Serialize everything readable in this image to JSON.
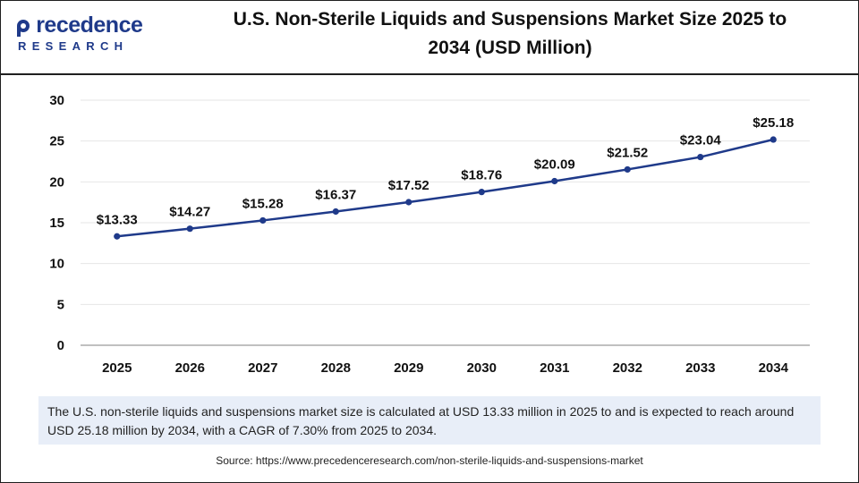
{
  "brand": {
    "name_prefix": "P",
    "name_rest": "recedence",
    "subtitle": "RESEARCH",
    "color": "#1f3a8a"
  },
  "title_line1": "U.S. Non-Sterile Liquids and Suspensions Market Size 2025 to",
  "title_line2": "2034 (USD Million)",
  "chart_data": {
    "type": "line",
    "title": "U.S. Non-Sterile Liquids and Suspensions Market Size 2025 to 2034 (USD Million)",
    "xlabel": "",
    "ylabel": "",
    "categories": [
      "2025",
      "2026",
      "2027",
      "2028",
      "2029",
      "2030",
      "2031",
      "2032",
      "2033",
      "2034"
    ],
    "series": [
      {
        "name": "Market Size (USD Million)",
        "values": [
          13.33,
          14.27,
          15.28,
          16.37,
          17.52,
          18.76,
          20.09,
          21.52,
          23.04,
          25.18
        ],
        "labels": [
          "$13.33",
          "$14.27",
          "$15.28",
          "$16.37",
          "$17.52",
          "$18.76",
          "$20.09",
          "$21.52",
          "$23.04",
          "$25.18"
        ],
        "color": "#1f3a8a"
      }
    ],
    "ylim": [
      0,
      30
    ],
    "yticks": [
      "0",
      "5",
      "10",
      "15",
      "20",
      "25",
      "30"
    ],
    "grid": true,
    "legend": "none"
  },
  "summary": "The U.S. non-sterile liquids and suspensions market size is calculated at USD 13.33 million in 2025 to and is expected to reach around USD 25.18 million by 2034, with a CAGR of 7.30% from 2025 to 2034.",
  "source": "Source: https://www.precedenceresearch.com/non-sterile-liquids-and-suspensions-market"
}
